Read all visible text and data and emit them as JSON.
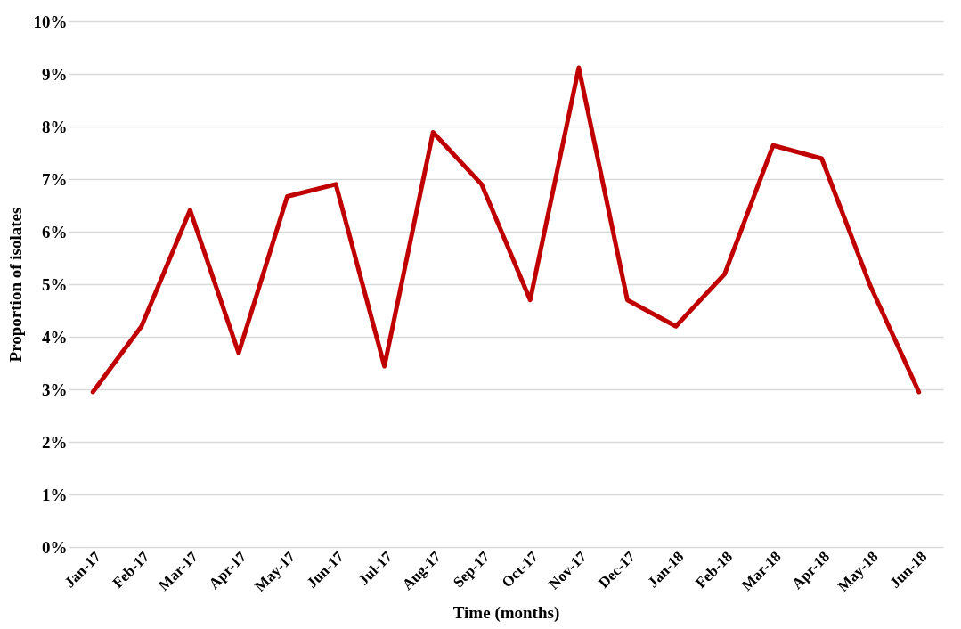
{
  "chart_data": {
    "type": "line",
    "xlabel": "Time (months)",
    "ylabel": "Proportion of isolates",
    "categories": [
      "Jan-17",
      "Feb-17",
      "Mar-17",
      "Apr-17",
      "May-17",
      "Jun-17",
      "Jul-17",
      "Aug-17",
      "Sep-17",
      "Oct-17",
      "Nov-17",
      "Dec-17",
      "Jan-18",
      "Feb-18",
      "Mar-18",
      "Apr-18",
      "May-18",
      "Jun-18"
    ],
    "series": [
      {
        "color": "#c00000",
        "values": [
          2.95,
          4.2,
          6.41,
          3.69,
          6.67,
          6.9,
          3.44,
          7.89,
          6.9,
          4.7,
          9.12,
          4.7,
          4.2,
          5.19,
          7.64,
          7.39,
          4.97,
          2.95
        ]
      }
    ],
    "ylim": [
      0,
      10
    ],
    "yticks": [
      {
        "value": 0,
        "label": "0%"
      },
      {
        "value": 1,
        "label": "1%"
      },
      {
        "value": 2,
        "label": "2%"
      },
      {
        "value": 3,
        "label": "3%"
      },
      {
        "value": 4,
        "label": "4%"
      },
      {
        "value": 5,
        "label": "5%"
      },
      {
        "value": 6,
        "label": "6%"
      },
      {
        "value": 7,
        "label": "7%"
      },
      {
        "value": 8,
        "label": "8%"
      },
      {
        "value": 9,
        "label": "9%"
      },
      {
        "value": 10,
        "label": "10%"
      }
    ],
    "grid": "y",
    "legend": false,
    "marker": "none",
    "line_style": "solid"
  }
}
